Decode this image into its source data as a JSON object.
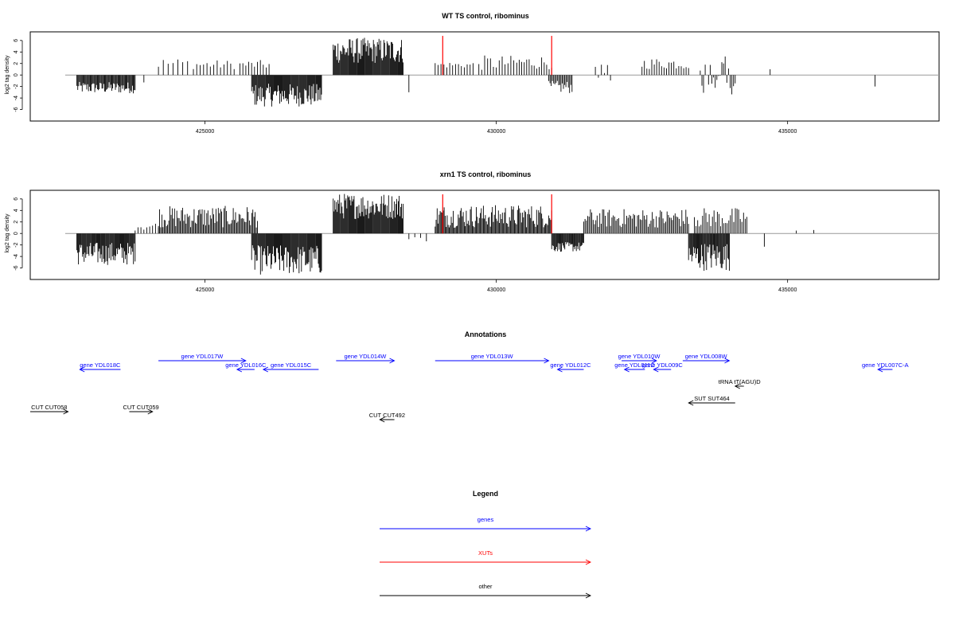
{
  "chart_data": [
    {
      "type": "bar",
      "title": "WT TS control, ribominus",
      "ylabel": "log2 tag density",
      "xlabel": "",
      "xlim": [
        422000,
        437600
      ],
      "ylim": [
        -8,
        7.5
      ],
      "x_ticks": [
        425000,
        430000,
        435000
      ],
      "x_tick_labels": [
        "425000",
        "430000",
        "435000"
      ],
      "y_ticks": [
        -6,
        -4,
        -2,
        0,
        2,
        4,
        6
      ],
      "y_tick_labels": [
        "-6",
        "-4",
        "-2",
        "0",
        "2",
        "4",
        "6"
      ],
      "baseline_range": [
        422600,
        437600
      ],
      "red_marks": [
        429080,
        430950
      ],
      "red_mark_height": 6.8,
      "segments": [
        {
          "start": 422800,
          "end": 423800,
          "min": -3.2,
          "max": -1.2,
          "density": 0.9,
          "sign": -1
        },
        {
          "start": 423950,
          "end": 423960,
          "min": -1.5,
          "max": -1.0,
          "density": 1,
          "sign": -1
        },
        {
          "start": 424200,
          "end": 424700,
          "min": 1.0,
          "max": 3.0,
          "density": 0.2,
          "sign": 1
        },
        {
          "start": 424800,
          "end": 425500,
          "min": 1.0,
          "max": 2.6,
          "density": 0.25,
          "sign": 1
        },
        {
          "start": 425600,
          "end": 426100,
          "min": 1.0,
          "max": 2.6,
          "density": 0.3,
          "sign": 1
        },
        {
          "start": 425800,
          "end": 427000,
          "min": -5.5,
          "max": -1.5,
          "density": 1.0,
          "sign": -1
        },
        {
          "start": 427200,
          "end": 428400,
          "min": 2.0,
          "max": 6.5,
          "density": 1.0,
          "sign": 1
        },
        {
          "start": 428500,
          "end": 428510,
          "min": -3.0,
          "max": -3.0,
          "density": 1,
          "sign": -1
        },
        {
          "start": 428950,
          "end": 429600,
          "min": 1.2,
          "max": 2.3,
          "density": 0.3,
          "sign": 1
        },
        {
          "start": 429700,
          "end": 430300,
          "min": 0.8,
          "max": 3.4,
          "density": 0.3,
          "sign": 1
        },
        {
          "start": 430350,
          "end": 430950,
          "min": 1.0,
          "max": 3.4,
          "density": 0.35,
          "sign": 1
        },
        {
          "start": 430900,
          "end": 431300,
          "min": -3.2,
          "max": -1.0,
          "density": 0.7,
          "sign": -1
        },
        {
          "start": 431700,
          "end": 431960,
          "min": -2.0,
          "max": 1.8,
          "density": 0.3,
          "sign": 0
        },
        {
          "start": 432500,
          "end": 433300,
          "min": 1.0,
          "max": 3.0,
          "density": 0.35,
          "sign": 1
        },
        {
          "start": 433500,
          "end": 434100,
          "min": -2.5,
          "max": 3.6,
          "density": 0.5,
          "sign": 0
        },
        {
          "start": 434700,
          "end": 434710,
          "min": 1.0,
          "max": 1.0,
          "density": 1,
          "sign": 1
        },
        {
          "start": 436500,
          "end": 436510,
          "min": -2.0,
          "max": -2.0,
          "density": 1,
          "sign": -1
        }
      ]
    },
    {
      "type": "bar",
      "title": "xrn1 TS control, ribominus",
      "ylabel": "log2 tag density",
      "xlabel": "",
      "xlim": [
        422000,
        437600
      ],
      "ylim": [
        -8,
        7.5
      ],
      "x_ticks": [
        425000,
        430000,
        435000
      ],
      "x_tick_labels": [
        "425000",
        "430000",
        "435000"
      ],
      "y_ticks": [
        -6,
        -4,
        -2,
        0,
        2,
        4,
        6
      ],
      "y_tick_labels": [
        "-6",
        "-4",
        "-2",
        "0",
        "2",
        "4",
        "6"
      ],
      "baseline_range": [
        422600,
        437600
      ],
      "red_marks": [
        429080,
        430950
      ],
      "red_mark_height": 6.8,
      "segments": [
        {
          "start": 422800,
          "end": 423800,
          "min": -5.5,
          "max": -1.5,
          "density": 1.0,
          "sign": -1
        },
        {
          "start": 423800,
          "end": 424200,
          "min": 0.5,
          "max": 2.0,
          "density": 0.3,
          "sign": 1
        },
        {
          "start": 424200,
          "end": 425900,
          "min": 1.0,
          "max": 4.8,
          "density": 0.7,
          "sign": 1
        },
        {
          "start": 425800,
          "end": 427000,
          "min": -7.2,
          "max": -2.0,
          "density": 1.0,
          "sign": -1
        },
        {
          "start": 427200,
          "end": 428400,
          "min": 2.5,
          "max": 7.0,
          "density": 1.0,
          "sign": 1
        },
        {
          "start": 428500,
          "end": 428800,
          "min": -1.5,
          "max": -0.5,
          "density": 0.2,
          "sign": -1
        },
        {
          "start": 428950,
          "end": 430950,
          "min": 1.0,
          "max": 5.0,
          "density": 0.8,
          "sign": 1
        },
        {
          "start": 430950,
          "end": 431500,
          "min": -3.2,
          "max": -1.5,
          "density": 1.0,
          "sign": -1
        },
        {
          "start": 431500,
          "end": 433300,
          "min": 1.0,
          "max": 4.3,
          "density": 0.6,
          "sign": 1
        },
        {
          "start": 433300,
          "end": 434000,
          "min": -6.5,
          "max": -1.5,
          "density": 1.0,
          "sign": -1
        },
        {
          "start": 433400,
          "end": 434300,
          "min": 1.0,
          "max": 4.5,
          "density": 0.5,
          "sign": 1
        },
        {
          "start": 434600,
          "end": 434610,
          "min": -2.3,
          "max": -2.3,
          "density": 1,
          "sign": -1
        },
        {
          "start": 435150,
          "end": 435160,
          "min": 0.5,
          "max": 0.5,
          "density": 1,
          "sign": 1
        },
        {
          "start": 435450,
          "end": 435460,
          "min": 0.6,
          "max": 0.6,
          "density": 1,
          "sign": 1
        }
      ]
    }
  ],
  "annotations": {
    "title": "Annotations",
    "items": [
      {
        "label": "gene YDL018C",
        "start": 422850,
        "end": 423550,
        "strand": "-",
        "row": 1,
        "color": "#0000ff"
      },
      {
        "label": "gene YDL017W",
        "start": 424200,
        "end": 425700,
        "strand": "+",
        "row": 0,
        "color": "#0000ff"
      },
      {
        "label": "gene YDL016C",
        "start": 425550,
        "end": 425850,
        "strand": "-",
        "row": 1,
        "color": "#0000ff"
      },
      {
        "label": "gene YDL015C",
        "start": 426000,
        "end": 426950,
        "strand": "-",
        "row": 1,
        "color": "#0000ff"
      },
      {
        "label": "gene YDL014W",
        "start": 427250,
        "end": 428250,
        "strand": "+",
        "row": 0,
        "color": "#0000ff"
      },
      {
        "label": "gene YDL013W",
        "start": 428950,
        "end": 430900,
        "strand": "+",
        "row": 0,
        "color": "#0000ff"
      },
      {
        "label": "gene YDL012C",
        "start": 431050,
        "end": 431500,
        "strand": "-",
        "row": 1,
        "color": "#0000ff"
      },
      {
        "label": "gene YDL010W",
        "start": 432150,
        "end": 432750,
        "strand": "+",
        "row": 0,
        "color": "#0000ff"
      },
      {
        "label": "gene YDL011C",
        "start": 432200,
        "end": 432550,
        "strand": "-",
        "row": 1,
        "color": "#0000ff"
      },
      {
        "label": "gene YDL009C",
        "start": 432700,
        "end": 433000,
        "strand": "-",
        "row": 1,
        "color": "#0000ff"
      },
      {
        "label": "gene YDL008W",
        "start": 433200,
        "end": 434000,
        "strand": "+",
        "row": 0,
        "color": "#0000ff"
      },
      {
        "label": "gene YDL007C-A",
        "start": 436550,
        "end": 436800,
        "strand": "-",
        "row": 1,
        "color": "#0000ff"
      },
      {
        "label": "tRNA tT(AGU)D",
        "start": 434100,
        "end": 434250,
        "strand": "-",
        "row": 2,
        "color": "#000000"
      },
      {
        "label": "SUT SUT464",
        "start": 433300,
        "end": 434100,
        "strand": "-",
        "row": 3,
        "color": "#000000"
      },
      {
        "label": "CUT CUT058",
        "start": 422000,
        "end": 422650,
        "strand": "+",
        "row": 4,
        "color": "#000000"
      },
      {
        "label": "CUT CUT059",
        "start": 423700,
        "end": 424100,
        "strand": "+",
        "row": 4,
        "color": "#000000"
      },
      {
        "label": "CUT CUT492",
        "start": 428000,
        "end": 428250,
        "strand": "-",
        "row": 5,
        "color": "#000000"
      }
    ]
  },
  "legend": {
    "title": "Legend",
    "items": [
      {
        "label": "genes",
        "color": "#0000ff"
      },
      {
        "label": "XUTs",
        "color": "#ff0000"
      },
      {
        "label": "other",
        "color": "#000000"
      }
    ]
  }
}
